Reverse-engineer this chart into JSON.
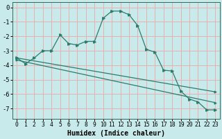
{
  "xlabel": "Humidex (Indice chaleur)",
  "background_color": "#c8eaea",
  "grid_color_major": "#e8b0b0",
  "line_color": "#2a7d6e",
  "xlim": [
    -0.5,
    23.5
  ],
  "ylim": [
    -7.7,
    0.35
  ],
  "yticks": [
    0,
    -1,
    -2,
    -3,
    -4,
    -5,
    -6,
    -7
  ],
  "xticks": [
    0,
    1,
    2,
    3,
    4,
    5,
    6,
    7,
    8,
    9,
    10,
    11,
    12,
    13,
    14,
    15,
    16,
    17,
    18,
    19,
    20,
    21,
    22,
    23
  ],
  "curve1_x": [
    0,
    1,
    2,
    3,
    4,
    5,
    6,
    7,
    8,
    9,
    10,
    11,
    12,
    13,
    14,
    15,
    16,
    17,
    18,
    19,
    20,
    21,
    22,
    23
  ],
  "curve1_y": [
    -3.5,
    -3.9,
    -3.5,
    -3.0,
    -3.0,
    -1.9,
    -2.5,
    -2.6,
    -2.35,
    -2.35,
    -0.75,
    -0.25,
    -0.25,
    -0.5,
    -1.25,
    -2.9,
    -3.1,
    -4.35,
    -4.4,
    -5.8,
    -6.35,
    -6.55,
    -7.1,
    -7.1
  ],
  "curve2_x": [
    0,
    23
  ],
  "curve2_y": [
    -3.5,
    -5.85
  ],
  "curve3_x": [
    0,
    23
  ],
  "curve3_y": [
    -3.65,
    -6.6
  ],
  "xlabel_fontsize": 7,
  "tick_fontsize": 5.8
}
